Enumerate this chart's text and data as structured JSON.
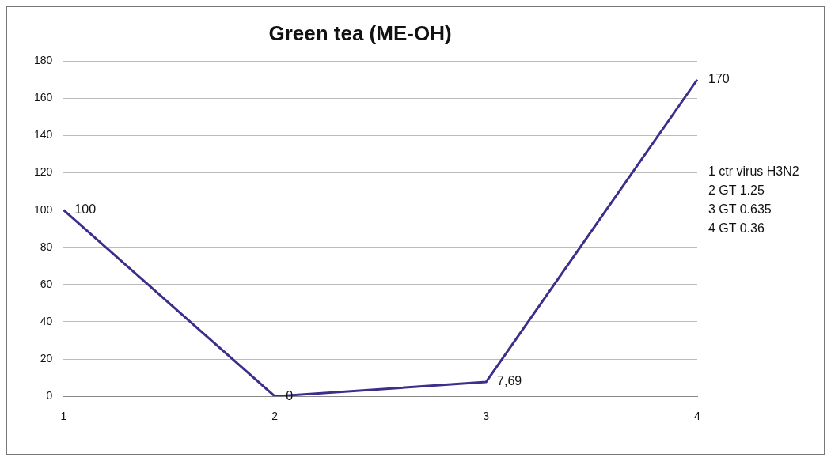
{
  "chart_data": {
    "type": "line",
    "title": "Green tea (ME-OH)",
    "categories": [
      "1",
      "2",
      "3",
      "4"
    ],
    "series": [
      {
        "color": "#3c2f8c",
        "values": [
          100,
          0,
          7.69,
          170
        ],
        "value_labels": [
          "100",
          "0",
          "7,69",
          "170"
        ]
      }
    ],
    "ylim": [
      0,
      180
    ],
    "yticks": [
      0,
      20,
      40,
      60,
      80,
      100,
      120,
      140,
      160,
      180
    ],
    "grid": "y",
    "legend": false,
    "marker": "none",
    "line_style": "solid",
    "annotations": [
      "1 ctr virus H3N2",
      "2 GT 1.25",
      "3 GT 0.635",
      "4 GT 0.36"
    ]
  }
}
